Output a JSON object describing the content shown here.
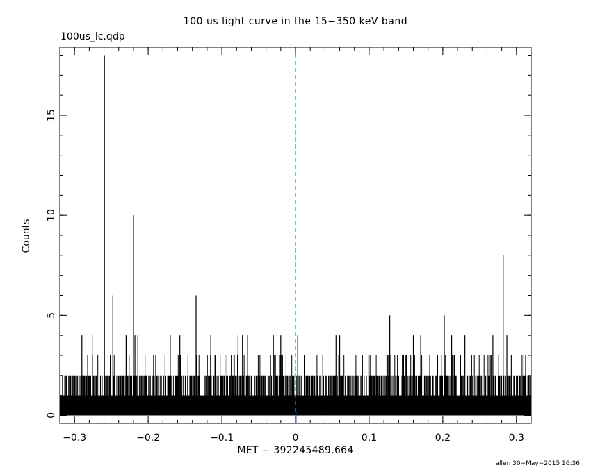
{
  "chart_data": {
    "type": "bar",
    "title": "100 us light curve in the 15−350 keV band",
    "subtitle": "100us_lc.qdp",
    "xlabel": "MET − 392245489.664",
    "ylabel": "Counts",
    "xlim": [
      -0.32,
      0.32
    ],
    "ylim": [
      -0.4,
      18.4
    ],
    "bin_width_s": 0.0001,
    "x_ticks": [
      -0.3,
      -0.2,
      -0.1,
      0,
      0.1,
      0.2,
      0.3
    ],
    "x_tick_labels": [
      "−0.3",
      "−0.2",
      "−0.1",
      "0",
      "0.1",
      "0.2",
      "0.3"
    ],
    "y_ticks": [
      0,
      5,
      10,
      15
    ],
    "y_tick_labels": [
      "0",
      "5",
      "10",
      "15"
    ],
    "background_level": {
      "typical_max": 2,
      "frequent_peaks": 3
    },
    "peaks": [
      {
        "x": -0.2594,
        "y": 18
      },
      {
        "x": -0.22,
        "y": 10
      },
      {
        "x": 0.282,
        "y": 8
      },
      {
        "x": -0.248,
        "y": 6
      },
      {
        "x": -0.135,
        "y": 6
      },
      {
        "x": 0.128,
        "y": 5
      },
      {
        "x": 0.202,
        "y": 5
      },
      {
        "x": -0.29,
        "y": 4
      },
      {
        "x": -0.276,
        "y": 4
      },
      {
        "x": -0.23,
        "y": 4
      },
      {
        "x": -0.218,
        "y": 4
      },
      {
        "x": -0.214,
        "y": 4
      },
      {
        "x": -0.17,
        "y": 4
      },
      {
        "x": -0.157,
        "y": 4
      },
      {
        "x": -0.115,
        "y": 4
      },
      {
        "x": -0.078,
        "y": 4
      },
      {
        "x": -0.072,
        "y": 4
      },
      {
        "x": -0.065,
        "y": 4
      },
      {
        "x": -0.03,
        "y": 4
      },
      {
        "x": -0.02,
        "y": 4
      },
      {
        "x": 0.003,
        "y": 4
      },
      {
        "x": 0.055,
        "y": 4
      },
      {
        "x": 0.06,
        "y": 4
      },
      {
        "x": 0.16,
        "y": 4
      },
      {
        "x": 0.17,
        "y": 4
      },
      {
        "x": 0.212,
        "y": 4
      },
      {
        "x": 0.23,
        "y": 4
      },
      {
        "x": 0.268,
        "y": 4
      },
      {
        "x": 0.287,
        "y": 4
      }
    ],
    "reference_line": {
      "x": 0,
      "style": "dashed",
      "color": "#1f9aa8"
    },
    "marker_line": {
      "x": 0.0008,
      "color": "#2a3fd0"
    }
  },
  "footer": {
    "stamp": "allen 30−May−2015 16:36"
  },
  "colors": {
    "axes": "#000000",
    "data": "#000000",
    "dash": "#1f9aa8",
    "marker": "#2a3fd0"
  }
}
